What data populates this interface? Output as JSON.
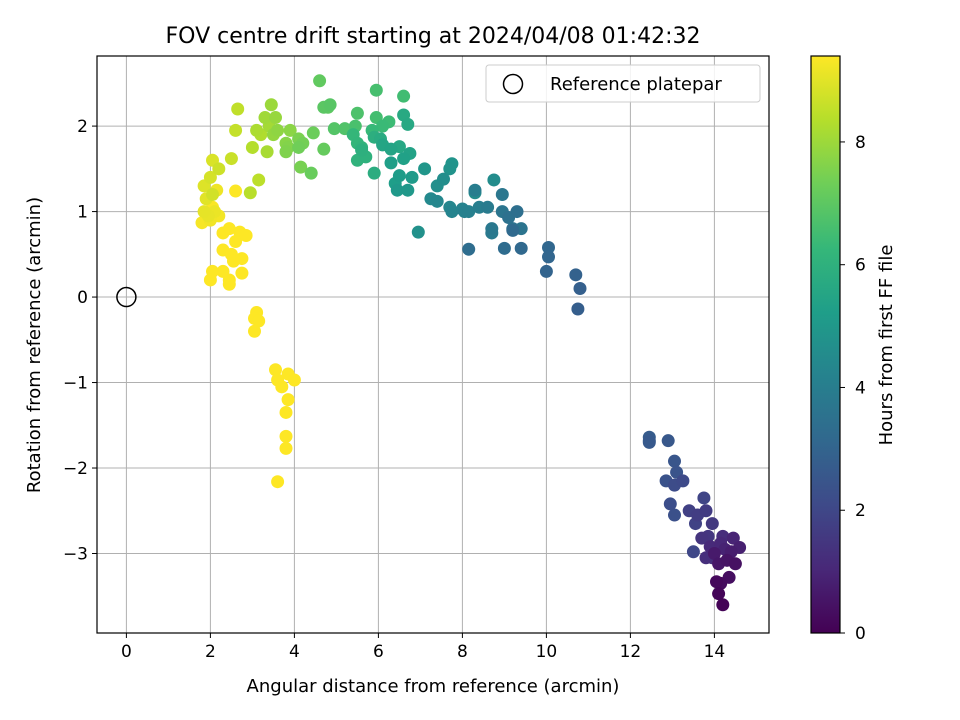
{
  "chart_data": {
    "type": "scatter",
    "title": "FOV centre drift starting at 2024/04/08 01:42:32",
    "xlabel": "Angular distance from reference (arcmin)",
    "ylabel": "Rotation from reference (arcmin)",
    "xlim": [
      -0.7,
      15.3
    ],
    "ylim": [
      -3.93,
      2.82
    ],
    "xticks": [
      0,
      2,
      4,
      6,
      8,
      10,
      12,
      14
    ],
    "yticks": [
      -3,
      -2,
      -1,
      0,
      1,
      2
    ],
    "grid": true,
    "legend": {
      "placement": "top-right",
      "entries": [
        "Reference platepar"
      ]
    },
    "reference_point": {
      "x": 0,
      "y": 0
    },
    "colorbar": {
      "label": "Hours from first FF file",
      "range": [
        0,
        9.4
      ],
      "ticks": [
        0,
        2,
        4,
        6,
        8
      ],
      "colormap": "viridis"
    },
    "series": [
      {
        "values": [
          [
            14.2,
            -3.6,
            0.05
          ],
          [
            14.1,
            -3.47,
            0.12
          ],
          [
            14.05,
            -3.33,
            0.2
          ],
          [
            14.15,
            -3.35,
            0.28
          ],
          [
            14.35,
            -3.28,
            0.35
          ],
          [
            14.5,
            -3.12,
            0.42
          ],
          [
            14.3,
            -3.08,
            0.5
          ],
          [
            14.1,
            -3.12,
            0.58
          ],
          [
            14.0,
            -3.0,
            0.66
          ],
          [
            14.4,
            -2.98,
            0.74
          ],
          [
            14.6,
            -2.93,
            0.82
          ],
          [
            14.25,
            -2.95,
            0.9
          ],
          [
            14.45,
            -2.82,
            0.97
          ],
          [
            14.15,
            -2.88,
            1.05
          ],
          [
            13.9,
            -2.92,
            1.12
          ],
          [
            14.2,
            -2.8,
            1.2
          ],
          [
            13.8,
            -3.05,
            1.26
          ],
          [
            13.95,
            -3.05,
            1.32
          ],
          [
            13.7,
            -2.82,
            1.4
          ],
          [
            13.85,
            -2.8,
            1.48
          ],
          [
            13.95,
            -2.65,
            1.56
          ],
          [
            13.8,
            -2.5,
            1.63
          ],
          [
            13.6,
            -2.55,
            1.7
          ],
          [
            13.4,
            -2.5,
            1.77
          ],
          [
            13.55,
            -2.65,
            1.84
          ],
          [
            13.75,
            -2.35,
            1.92
          ],
          [
            13.5,
            -2.98,
            2.0
          ],
          [
            13.25,
            -2.15,
            2.08
          ],
          [
            13.05,
            -2.2,
            2.16
          ],
          [
            12.95,
            -2.42,
            2.24
          ],
          [
            13.05,
            -2.55,
            2.3
          ],
          [
            12.85,
            -2.15,
            2.38
          ],
          [
            13.1,
            -2.05,
            2.44
          ],
          [
            13.05,
            -1.92,
            2.5
          ],
          [
            12.9,
            -1.68,
            2.56
          ],
          [
            12.45,
            -1.7,
            2.62
          ],
          [
            12.45,
            -1.68,
            2.66
          ],
          [
            12.45,
            -1.64,
            2.7
          ],
          [
            10.75,
            -0.14,
            2.78
          ],
          [
            10.8,
            0.1,
            2.85
          ],
          [
            10.7,
            0.26,
            2.92
          ],
          [
            10.0,
            0.3,
            3.0
          ],
          [
            10.05,
            0.47,
            3.05
          ],
          [
            10.05,
            0.58,
            3.1
          ],
          [
            9.4,
            0.57,
            3.16
          ],
          [
            9.2,
            0.78,
            3.22
          ],
          [
            9.0,
            0.57,
            3.28
          ],
          [
            8.15,
            0.56,
            3.34
          ],
          [
            9.3,
            1.0,
            3.42
          ],
          [
            9.1,
            0.93,
            3.48
          ],
          [
            9.2,
            0.8,
            3.54
          ],
          [
            9.4,
            0.8,
            3.6
          ],
          [
            8.95,
            1.0,
            3.66
          ],
          [
            8.95,
            1.2,
            3.72
          ],
          [
            8.7,
            0.8,
            3.78
          ],
          [
            8.7,
            0.75,
            3.84
          ],
          [
            8.6,
            1.05,
            3.9
          ],
          [
            8.3,
            1.25,
            3.96
          ],
          [
            8.4,
            1.05,
            4.02
          ],
          [
            8.15,
            1.0,
            4.08
          ],
          [
            8.05,
            1.0,
            4.14
          ],
          [
            8.0,
            1.03,
            4.2
          ],
          [
            7.75,
            1.0,
            4.26
          ],
          [
            7.7,
            1.05,
            4.32
          ],
          [
            7.4,
            1.12,
            4.38
          ],
          [
            7.25,
            1.15,
            4.44
          ],
          [
            8.3,
            1.22,
            4.5
          ],
          [
            8.75,
            1.37,
            4.56
          ],
          [
            7.55,
            1.38,
            4.62
          ],
          [
            7.4,
            1.3,
            4.68
          ],
          [
            6.95,
            0.76,
            4.74
          ],
          [
            7.7,
            1.5,
            4.8
          ],
          [
            7.75,
            1.56,
            4.86
          ],
          [
            7.1,
            1.5,
            4.92
          ],
          [
            6.7,
            1.25,
            4.98
          ],
          [
            6.45,
            1.25,
            5.04
          ],
          [
            6.8,
            1.4,
            5.1
          ],
          [
            6.5,
            1.42,
            5.16
          ],
          [
            6.4,
            1.33,
            5.22
          ],
          [
            6.3,
            1.57,
            5.28
          ],
          [
            6.6,
            1.62,
            5.34
          ],
          [
            6.75,
            1.68,
            5.4
          ],
          [
            6.3,
            1.73,
            5.46
          ],
          [
            6.1,
            1.78,
            5.52
          ],
          [
            6.5,
            1.76,
            5.58
          ],
          [
            6.7,
            2.02,
            5.64
          ],
          [
            6.6,
            2.13,
            5.7
          ],
          [
            6.05,
            1.85,
            5.76
          ],
          [
            5.9,
            1.45,
            5.82
          ],
          [
            5.9,
            1.87,
            5.88
          ],
          [
            5.6,
            1.72,
            5.94
          ],
          [
            5.7,
            1.64,
            6.0
          ],
          [
            5.5,
            1.6,
            6.06
          ],
          [
            5.6,
            1.75,
            6.12
          ],
          [
            5.5,
            1.8,
            6.18
          ],
          [
            5.4,
            1.9,
            6.24
          ],
          [
            5.85,
            1.95,
            6.3
          ],
          [
            6.1,
            2.0,
            6.36
          ],
          [
            6.25,
            2.05,
            6.42
          ],
          [
            6.6,
            2.35,
            6.48
          ],
          [
            5.95,
            2.1,
            6.54
          ],
          [
            5.95,
            2.42,
            6.6
          ],
          [
            5.45,
            2.0,
            6.66
          ],
          [
            5.5,
            2.15,
            6.72
          ],
          [
            5.2,
            1.97,
            6.78
          ],
          [
            4.95,
            1.97,
            6.84
          ],
          [
            4.85,
            2.25,
            6.9
          ],
          [
            4.7,
            2.22,
            6.96
          ],
          [
            4.8,
            2.22,
            7.02
          ],
          [
            4.6,
            2.53,
            7.08
          ],
          [
            4.7,
            1.73,
            7.14
          ],
          [
            4.4,
            1.45,
            7.2
          ],
          [
            4.45,
            1.92,
            7.26
          ],
          [
            4.1,
            1.75,
            7.32
          ],
          [
            4.2,
            1.8,
            7.38
          ],
          [
            4.15,
            1.52,
            7.44
          ],
          [
            4.1,
            1.85,
            7.5
          ],
          [
            3.8,
            1.7,
            7.56
          ],
          [
            3.85,
            1.75,
            7.62
          ],
          [
            3.8,
            1.8,
            7.68
          ],
          [
            3.9,
            1.95,
            7.74
          ],
          [
            3.6,
            1.95,
            7.8
          ],
          [
            3.5,
            1.9,
            7.86
          ],
          [
            3.55,
            2.1,
            7.92
          ],
          [
            3.45,
            2.25,
            7.98
          ],
          [
            3.3,
            2.1,
            8.04
          ],
          [
            3.4,
            2.0,
            8.1
          ],
          [
            3.35,
            1.7,
            8.16
          ],
          [
            3.1,
            1.95,
            8.22
          ],
          [
            3.2,
            1.9,
            8.28
          ],
          [
            3.0,
            1.75,
            8.34
          ],
          [
            2.95,
            1.22,
            8.4
          ],
          [
            3.15,
            1.37,
            8.46
          ],
          [
            2.65,
            2.2,
            8.52
          ],
          [
            2.6,
            1.95,
            8.58
          ]
        ],
        "values_b": [
          [
            2.5,
            1.62,
            8.64
          ],
          [
            2.2,
            1.5,
            8.7
          ],
          [
            2.05,
            1.2,
            8.76
          ],
          [
            2.0,
            1.4,
            8.82
          ],
          [
            2.05,
            1.6,
            8.88
          ],
          [
            1.85,
            1.3,
            8.94
          ],
          [
            1.9,
            1.15,
            9.0
          ],
          [
            1.85,
            1.0,
            9.06
          ],
          [
            1.95,
            0.95,
            9.1
          ],
          [
            2.1,
            1.0,
            9.14
          ],
          [
            2.15,
            1.25,
            9.18
          ],
          [
            2.0,
            0.9,
            9.22
          ],
          [
            2.2,
            0.95,
            9.26
          ],
          [
            1.8,
            0.87,
            9.3
          ],
          [
            2.05,
            1.05,
            9.34
          ],
          [
            2.6,
            1.24,
            9.38
          ],
          [
            2.3,
            0.75,
            9.4
          ],
          [
            2.45,
            0.8,
            9.4
          ],
          [
            2.6,
            0.65,
            9.4
          ],
          [
            2.7,
            0.76,
            9.4
          ],
          [
            2.85,
            0.72,
            9.4
          ],
          [
            2.3,
            0.55,
            9.4
          ],
          [
            2.5,
            0.5,
            9.4
          ],
          [
            2.55,
            0.42,
            9.4
          ],
          [
            2.75,
            0.45,
            9.4
          ],
          [
            2.3,
            0.3,
            9.4
          ],
          [
            2.45,
            0.2,
            9.4
          ],
          [
            2.45,
            0.15,
            9.4
          ],
          [
            2.75,
            0.28,
            9.4
          ],
          [
            2.0,
            0.2,
            9.4
          ],
          [
            2.05,
            0.3,
            9.4
          ],
          [
            3.1,
            -0.18,
            9.4
          ],
          [
            3.05,
            -0.25,
            9.4
          ],
          [
            3.15,
            -0.28,
            9.4
          ],
          [
            3.05,
            -0.4,
            9.4
          ],
          [
            3.55,
            -0.85,
            9.4
          ],
          [
            3.6,
            -0.97,
            9.4
          ],
          [
            3.85,
            -0.9,
            9.4
          ],
          [
            4.0,
            -0.97,
            9.4
          ],
          [
            3.7,
            -1.05,
            9.4
          ],
          [
            3.85,
            -1.2,
            9.4
          ],
          [
            3.8,
            -1.35,
            9.4
          ],
          [
            3.8,
            -1.63,
            9.4
          ],
          [
            3.8,
            -1.77,
            9.4
          ],
          [
            3.6,
            -2.16,
            9.4
          ]
        ]
      }
    ]
  }
}
